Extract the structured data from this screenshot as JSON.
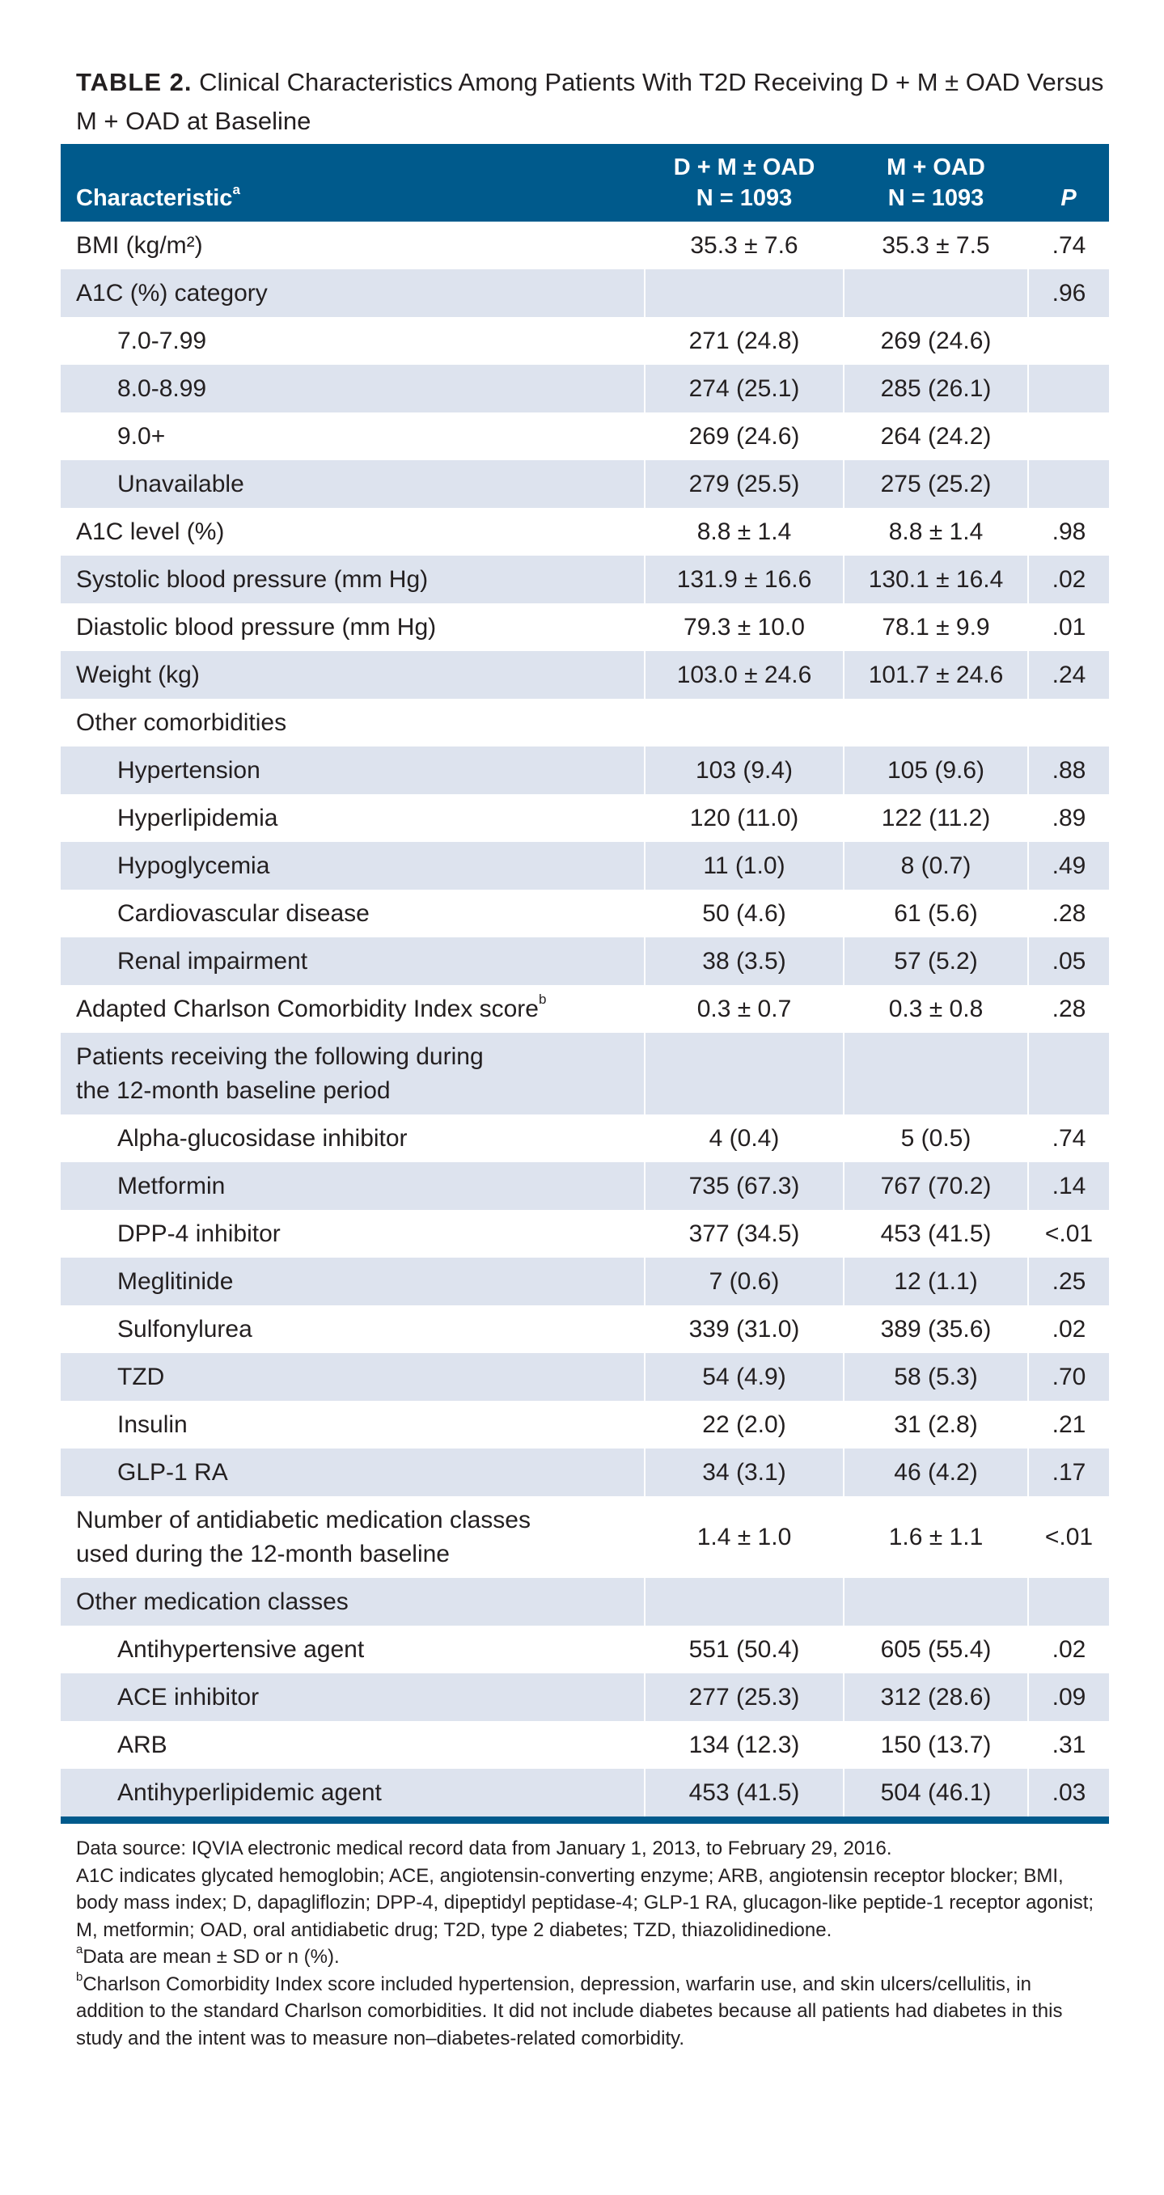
{
  "caption": {
    "label": "TABLE 2.",
    "text": "Clinical Characteristics Among Patients With T2D Receiving D + M ± OAD Versus M + OAD at Baseline"
  },
  "header": {
    "characteristic": "Characteristic",
    "characteristic_sup": "a",
    "group1_line1": "D + M ± OAD",
    "group1_line2": "N = 1093",
    "group2_line1": "M + OAD",
    "group2_line2": "N = 1093",
    "p": "P"
  },
  "rows": [
    {
      "label": "BMI (kg/m²)",
      "dm": "35.3 ± 7.6",
      "m": "35.3 ± 7.5",
      "p": ".74"
    },
    {
      "label": "A1C (%) category",
      "dm": "",
      "m": "",
      "p": ".96"
    },
    {
      "label": "7.0-7.99",
      "dm": "271 (24.8)",
      "m": "269 (24.6)",
      "p": ""
    },
    {
      "label": "8.0-8.99",
      "dm": "274 (25.1)",
      "m": "285 (26.1)",
      "p": ""
    },
    {
      "label": "9.0+",
      "dm": "269 (24.6)",
      "m": "264 (24.2)",
      "p": ""
    },
    {
      "label": "Unavailable",
      "dm": "279 (25.5)",
      "m": "275 (25.2)",
      "p": ""
    },
    {
      "label": "A1C level (%)",
      "dm": "8.8 ± 1.4",
      "m": "8.8 ± 1.4",
      "p": ".98"
    },
    {
      "label": "Systolic blood pressure (mm Hg)",
      "dm": "131.9 ± 16.6",
      "m": "130.1 ± 16.4",
      "p": ".02"
    },
    {
      "label": "Diastolic blood pressure (mm Hg)",
      "dm": "79.3 ± 10.0",
      "m": "78.1 ± 9.9",
      "p": ".01"
    },
    {
      "label": "Weight (kg)",
      "dm": "103.0 ± 24.6",
      "m": "101.7 ± 24.6",
      "p": ".24"
    },
    {
      "label": "Other comorbidities",
      "dm": "",
      "m": "",
      "p": ""
    },
    {
      "label": "Hypertension",
      "dm": "103 (9.4)",
      "m": "105 (9.6)",
      "p": ".88"
    },
    {
      "label": "Hyperlipidemia",
      "dm": "120 (11.0)",
      "m": "122 (11.2)",
      "p": ".89"
    },
    {
      "label": "Hypoglycemia",
      "dm": "11 (1.0)",
      "m": "8 (0.7)",
      "p": ".49"
    },
    {
      "label": "Cardiovascular disease",
      "dm": "50 (4.6)",
      "m": "61 (5.6)",
      "p": ".28"
    },
    {
      "label": "Renal impairment",
      "dm": "38 (3.5)",
      "m": "57 (5.2)",
      "p": ".05"
    },
    {
      "label": "Adapted Charlson Comorbidity Index score",
      "label_sup": "b",
      "dm": "0.3 ± 0.7",
      "m": "0.3 ± 0.8",
      "p": ".28"
    },
    {
      "label": "Patients receiving the following during",
      "label_line2": "the 12-month baseline period",
      "dm": "",
      "m": "",
      "p": ""
    },
    {
      "label": "Alpha-glucosidase inhibitor",
      "dm": "4 (0.4)",
      "m": "5 (0.5)",
      "p": ".74"
    },
    {
      "label": "Metformin",
      "dm": "735 (67.3)",
      "m": "767 (70.2)",
      "p": ".14"
    },
    {
      "label": "DPP-4 inhibitor",
      "dm": "377 (34.5)",
      "m": "453 (41.5)",
      "p": "<.01"
    },
    {
      "label": "Meglitinide",
      "dm": "7 (0.6)",
      "m": "12 (1.1)",
      "p": ".25"
    },
    {
      "label": "Sulfonylurea",
      "dm": "339 (31.0)",
      "m": "389 (35.6)",
      "p": ".02"
    },
    {
      "label": "TZD",
      "dm": "54 (4.9)",
      "m": "58 (5.3)",
      "p": ".70"
    },
    {
      "label": "Insulin",
      "dm": "22 (2.0)",
      "m": "31 (2.8)",
      "p": ".21"
    },
    {
      "label": "GLP-1 RA",
      "dm": "34 (3.1)",
      "m": "46 (4.2)",
      "p": ".17"
    },
    {
      "label": "Number of antidiabetic medication classes",
      "label_line2": "used during the 12-month baseline",
      "dm": "1.4 ± 1.0",
      "m": "1.6 ± 1.1",
      "p": "<.01"
    },
    {
      "label": "Other medication classes",
      "dm": "",
      "m": "",
      "p": ""
    },
    {
      "label": "Antihypertensive agent",
      "dm": "551 (50.4)",
      "m": "605 (55.4)",
      "p": ".02"
    },
    {
      "label": "ACE inhibitor",
      "dm": "277 (25.3)",
      "m": "312 (28.6)",
      "p": ".09"
    },
    {
      "label": "ARB",
      "dm": "134 (12.3)",
      "m": "150 (13.7)",
      "p": ".31"
    },
    {
      "label": "Antihyperlipidemic agent",
      "dm": "453 (41.5)",
      "m": "504 (46.1)",
      "p": ".03"
    }
  ],
  "notes": {
    "source": "Data source: IQVIA electronic medical record data from January 1, 2013, to February 29, 2016.",
    "abbreviations": "A1C indicates glycated hemoglobin; ACE, angiotensin-converting enzyme; ARB, angiotensin receptor blocker; BMI, body mass index; D, dapagliflozin; DPP-4, dipeptidyl peptidase-4; GLP-1 RA, glucagon-like peptide-1 receptor agonist; M, metformin; OAD, oral antidiabetic drug; T2D, type 2 diabetes; TZD, thiazolidinedione.",
    "footnote_a_mark": "a",
    "footnote_a": "Data are mean ± SD or n (%).",
    "footnote_b_mark": "b",
    "footnote_b": "Charlson Comorbidity Index score included hypertension, depression, warfarin use, and skin ulcers/cellulitis, in addition to the standard Charlson comorbidities. It did not include diabetes because all patients had diabetes in this study and the intent was to measure non–diabetes-related comorbidity."
  },
  "colors": {
    "header_bg": "#005a8c",
    "shade_bg": "#dde3ee",
    "text": "#231f20"
  }
}
